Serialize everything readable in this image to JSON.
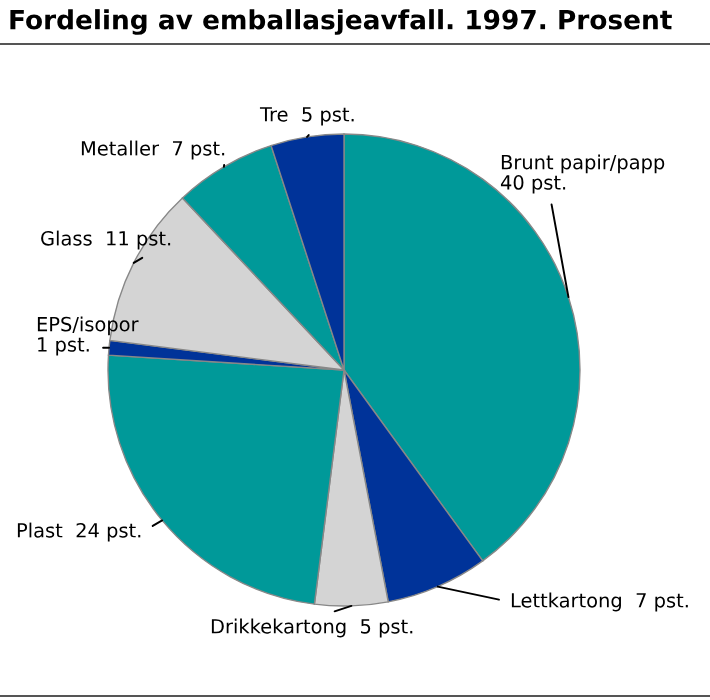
{
  "chart_data": {
    "type": "pie",
    "title": "Fordeling av emballasjeavfall. 1997. Prosent",
    "categories": [
      "Brunt papir/papp",
      "Lettkartong",
      "Drikkekartong",
      "Plast",
      "EPS/isopor",
      "Glass",
      "Metaller",
      "Tre"
    ],
    "values": [
      40,
      7,
      5,
      24,
      1,
      11,
      7,
      5
    ],
    "value_labels": [
      "40 pst.",
      "7 pst.",
      "5 pst.",
      "24 pst.",
      "1 pst.",
      "11 pst.",
      "7 pst.",
      "5 pst."
    ],
    "colors": [
      "#009999",
      "#003399",
      "#d4d4d4",
      "#009999",
      "#003399",
      "#d4d4d4",
      "#009999",
      "#003399"
    ]
  }
}
